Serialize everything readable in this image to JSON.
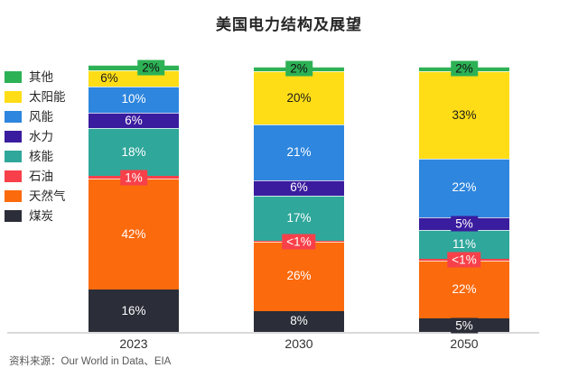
{
  "title": "美国电力结构及展望",
  "source_note": "资料来源：Our World in Data、EIA",
  "chart_data": {
    "type": "bar",
    "stacked": true,
    "orientation": "vertical",
    "unit": "%",
    "title": "美国电力结构及展望",
    "categories": [
      "2023",
      "2030",
      "2050"
    ],
    "legend_position": "left",
    "legend_order_top_to_bottom": [
      "其他",
      "太阳能",
      "风能",
      "水力",
      "核能",
      "石油",
      "天然气",
      "煤炭"
    ],
    "series": [
      {
        "name": "煤炭",
        "color": "#2b2d38",
        "label_color": "#ffffff",
        "values": [
          16,
          8,
          5
        ],
        "labels": [
          "16%",
          "8%",
          "5%"
        ]
      },
      {
        "name": "天然气",
        "color": "#fb6a0d",
        "label_color": "#ffffff",
        "values": [
          42,
          26,
          22
        ],
        "labels": [
          "42%",
          "26%",
          "22%"
        ]
      },
      {
        "name": "石油",
        "color": "#f7404a",
        "label_color": "#ffffff",
        "values": [
          1,
          0.5,
          0.5
        ],
        "labels": [
          "1%",
          "<1%",
          "<1%"
        ]
      },
      {
        "name": "核能",
        "color": "#2fa79b",
        "label_color": "#ffffff",
        "values": [
          18,
          17,
          11
        ],
        "labels": [
          "18%",
          "17%",
          "11%"
        ]
      },
      {
        "name": "水力",
        "color": "#3a1c9e",
        "label_color": "#ffffff",
        "values": [
          6,
          6,
          5
        ],
        "labels": [
          "6%",
          "6%",
          "5%"
        ]
      },
      {
        "name": "风能",
        "color": "#2e86de",
        "label_color": "#ffffff",
        "values": [
          10,
          21,
          22
        ],
        "labels": [
          "10%",
          "21%",
          "22%"
        ]
      },
      {
        "name": "太阳能",
        "color": "#ffdd16",
        "label_color": "#1c1c1c",
        "values": [
          6,
          20,
          33
        ],
        "labels": [
          "6%",
          "20%",
          "33%"
        ],
        "label_dx": [
          -27,
          0,
          0
        ]
      },
      {
        "name": "其他",
        "color": "#2db155",
        "label_color": "#111111",
        "values": [
          2,
          2,
          2
        ],
        "labels": [
          "2%",
          "2%",
          "2%"
        ],
        "label_dx": [
          19,
          0,
          0
        ]
      }
    ]
  }
}
